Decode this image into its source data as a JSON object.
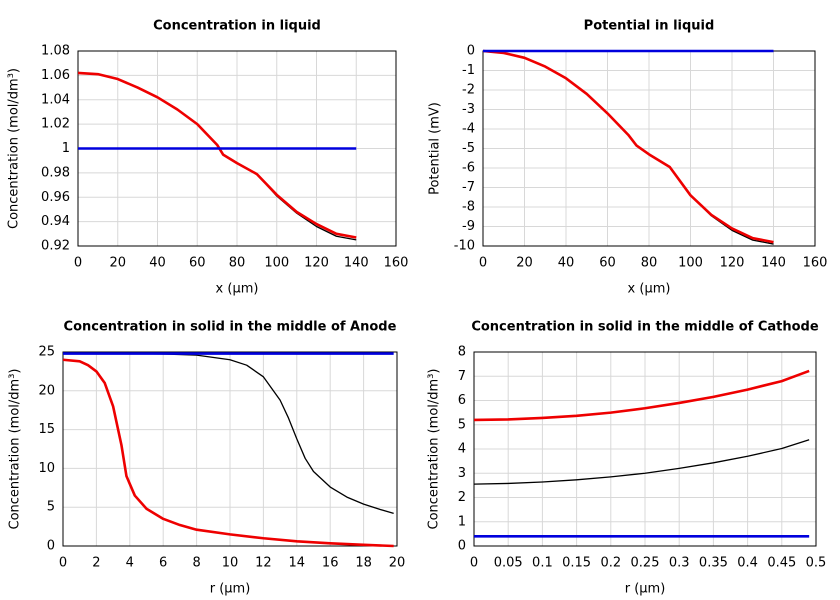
{
  "chart_data": [
    {
      "type": "line",
      "title": "Concentration in liquid",
      "x_label": "x (µm)",
      "y_label": "Concentration (mol/dm³)",
      "xlim": [
        0,
        160
      ],
      "xticks": [
        0,
        20,
        40,
        60,
        80,
        100,
        120,
        140,
        160
      ],
      "ylim": [
        0.92,
        1.08
      ],
      "yticks": [
        0.92,
        0.94,
        0.96,
        0.98,
        1,
        1.02,
        1.04,
        1.06,
        1.08
      ],
      "grid": true,
      "series": [
        {
          "color": "#000000",
          "x": [
            0,
            10,
            20,
            30,
            40,
            50,
            60,
            70,
            73,
            80,
            90,
            100,
            110,
            120,
            130,
            140
          ],
          "values": [
            1.062,
            1.061,
            1.057,
            1.05,
            1.042,
            1.032,
            1.02,
            1.003,
            0.995,
            0.988,
            0.979,
            0.961,
            0.947,
            0.936,
            0.928,
            0.925
          ]
        },
        {
          "color": "#ee0000",
          "x": [
            0,
            10,
            20,
            30,
            40,
            50,
            60,
            70,
            73,
            80,
            90,
            100,
            110,
            120,
            130,
            140
          ],
          "values": [
            1.062,
            1.061,
            1.057,
            1.05,
            1.042,
            1.032,
            1.02,
            1.003,
            0.995,
            0.988,
            0.979,
            0.962,
            0.948,
            0.938,
            0.93,
            0.927
          ]
        },
        {
          "color": "#0000dd",
          "x": [
            0,
            140
          ],
          "values": [
            1,
            1
          ]
        }
      ]
    },
    {
      "type": "line",
      "title": "Potential in liquid",
      "x_label": "x (µm)",
      "y_label": "Potential (mV)",
      "xlim": [
        0,
        160
      ],
      "xticks": [
        0,
        20,
        40,
        60,
        80,
        100,
        120,
        140,
        160
      ],
      "ylim": [
        -10,
        0
      ],
      "yticks": [
        0,
        -1,
        -2,
        -3,
        -4,
        -5,
        -6,
        -7,
        -8,
        -9,
        -10
      ],
      "grid": true,
      "series": [
        {
          "color": "#000000",
          "x": [
            0,
            10,
            20,
            30,
            40,
            50,
            60,
            70,
            74,
            80,
            90,
            100,
            110,
            120,
            130,
            140
          ],
          "values": [
            0,
            -0.1,
            -0.35,
            -0.8,
            -1.4,
            -2.2,
            -3.2,
            -4.3,
            -4.85,
            -5.3,
            -5.95,
            -7.4,
            -8.45,
            -9.2,
            -9.7,
            -9.9
          ]
        },
        {
          "color": "#ee0000",
          "x": [
            0,
            10,
            20,
            30,
            40,
            50,
            60,
            70,
            74,
            80,
            90,
            100,
            110,
            120,
            130,
            140
          ],
          "values": [
            0,
            -0.1,
            -0.35,
            -0.8,
            -1.4,
            -2.2,
            -3.2,
            -4.3,
            -4.85,
            -5.3,
            -5.95,
            -7.4,
            -8.4,
            -9.1,
            -9.6,
            -9.8
          ]
        },
        {
          "color": "#0000dd",
          "x": [
            0,
            140
          ],
          "values": [
            0,
            0
          ]
        }
      ]
    },
    {
      "type": "line",
      "title": "Concentration in solid in the middle of Anode",
      "x_label": "r (µm)",
      "y_label": "Concentration (mol/dm³)",
      "xlim": [
        0,
        20
      ],
      "xticks": [
        0,
        2,
        4,
        6,
        8,
        10,
        12,
        14,
        16,
        18,
        20
      ],
      "ylim": [
        0,
        25
      ],
      "yticks": [
        0,
        5,
        10,
        15,
        20,
        25
      ],
      "grid": true,
      "series": [
        {
          "color": "#000000",
          "x": [
            0,
            4,
            6,
            8,
            10,
            11,
            12,
            13,
            13.5,
            14,
            14.5,
            15,
            16,
            17,
            18,
            19,
            19.8
          ],
          "values": [
            24.8,
            24.8,
            24.75,
            24.6,
            24,
            23.3,
            21.8,
            18.8,
            16.5,
            13.8,
            11.3,
            9.6,
            7.6,
            6.3,
            5.4,
            4.7,
            4.2
          ]
        },
        {
          "color": "#ee0000",
          "x": [
            0,
            1,
            1.5,
            2,
            2.5,
            3,
            3.5,
            3.8,
            4.3,
            5,
            6,
            7,
            8,
            10,
            12,
            14,
            16,
            18,
            19.8
          ],
          "values": [
            24,
            23.8,
            23.3,
            22.5,
            21,
            18,
            13,
            9,
            6.5,
            4.8,
            3.5,
            2.7,
            2.1,
            1.5,
            1,
            0.6,
            0.35,
            0.15,
            0
          ]
        },
        {
          "color": "#0000dd",
          "x": [
            0,
            19.8
          ],
          "values": [
            24.8,
            24.8
          ]
        }
      ]
    },
    {
      "type": "line",
      "title": "Concentration in solid in the middle of Cathode",
      "x_label": "r (µm)",
      "y_label": "Concentration (mol/dm³)",
      "xlim": [
        0,
        0.5
      ],
      "xticks": [
        0,
        0.05,
        0.1,
        0.15,
        0.2,
        0.25,
        0.3,
        0.35,
        0.4,
        0.45,
        0.5
      ],
      "ylim": [
        0,
        8
      ],
      "yticks": [
        0,
        1,
        2,
        3,
        4,
        5,
        6,
        7,
        8
      ],
      "grid": true,
      "series": [
        {
          "color": "#000000",
          "x": [
            0,
            0.05,
            0.1,
            0.15,
            0.2,
            0.25,
            0.3,
            0.35,
            0.4,
            0.45,
            0.49
          ],
          "values": [
            2.55,
            2.58,
            2.64,
            2.73,
            2.85,
            3,
            3.2,
            3.43,
            3.7,
            4.02,
            4.38
          ]
        },
        {
          "color": "#ee0000",
          "x": [
            0,
            0.05,
            0.1,
            0.15,
            0.2,
            0.25,
            0.3,
            0.35,
            0.4,
            0.45,
            0.49
          ],
          "values": [
            5.2,
            5.22,
            5.28,
            5.37,
            5.5,
            5.68,
            5.9,
            6.15,
            6.45,
            6.8,
            7.22
          ]
        },
        {
          "color": "#0000dd",
          "x": [
            0,
            0.49
          ],
          "values": [
            0.4,
            0.4
          ]
        }
      ]
    }
  ]
}
